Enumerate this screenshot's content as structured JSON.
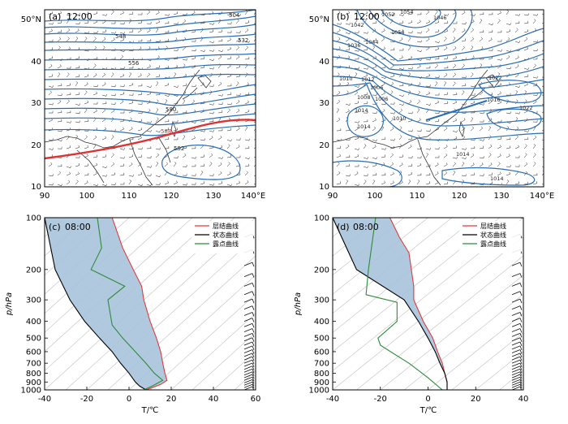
{
  "colors": {
    "contour": "#2a6db5",
    "contour_dark": "#1f4f8f",
    "ridge": "#e03030",
    "stratification": "#e03a3a",
    "state": "#000000",
    "dewpoint": "#2e8b3a",
    "cape_fill": "#a8c3dc",
    "isotherm": "#c8c8c8",
    "wind": "#222222"
  },
  "chart_data": [
    {
      "type": "map-contour",
      "panel": "(a)",
      "time_label": "12:00",
      "lat_range": [
        10,
        50
      ],
      "lon_range": [
        90,
        140
      ],
      "y_tick_labels": [
        "10",
        "20",
        "30",
        "40",
        "50°N"
      ],
      "x_tick_labels": [
        "90",
        "100",
        "110",
        "120",
        "130",
        "140°E"
      ],
      "contour_labels": [
        "504",
        "532",
        "548",
        "556",
        "580",
        "588",
        "592"
      ],
      "highlight_contour": "588"
    },
    {
      "type": "map-contour",
      "panel": "(b)",
      "time_label": "12:00",
      "lat_range": [
        10,
        50
      ],
      "lon_range": [
        90,
        140
      ],
      "y_tick_labels": [
        "10",
        "20",
        "30",
        "40",
        "50°N"
      ],
      "x_tick_labels": [
        "90",
        "100",
        "110",
        "120",
        "130",
        "140°E"
      ],
      "contour_labels": [
        "1052",
        "1054",
        "1042",
        "1046",
        "1054",
        "1036",
        "1044",
        "1010",
        "1006",
        "1008",
        "1006",
        "1012",
        "1014",
        "1010",
        "1014",
        "1016",
        "1014",
        "1022",
        "1022",
        "1014"
      ]
    },
    {
      "type": "line",
      "panel": "(c)",
      "time_label": "08:00",
      "xlabel": "T/℃",
      "ylabel": "p/hPa",
      "xlim": [
        -40,
        60
      ],
      "ylim": [
        1000,
        100
      ],
      "x_ticks": [
        "-40",
        "-20",
        "0",
        "20",
        "40",
        "60"
      ],
      "y_ticks": [
        "100",
        "200",
        "300",
        "400",
        "500",
        "600",
        "700",
        "800",
        "900",
        "1000"
      ],
      "legend": [
        "层结曲线",
        "状态曲线",
        "露点曲线"
      ],
      "series": [
        {
          "name": "层结曲线",
          "color": "#e03a3a",
          "points": [
            [
              -8,
              100
            ],
            [
              -3,
              150
            ],
            [
              2,
              200
            ],
            [
              6,
              250
            ],
            [
              7,
              300
            ],
            [
              10,
              400
            ],
            [
              13,
              500
            ],
            [
              15,
              600
            ],
            [
              16,
              700
            ],
            [
              17,
              800
            ],
            [
              18,
              880
            ],
            [
              15,
              930
            ],
            [
              11,
              970
            ],
            [
              8,
              1000
            ]
          ]
        },
        {
          "name": "状态曲线",
          "color": "#000000",
          "points": [
            [
              -40,
              100
            ],
            [
              -35,
              200
            ],
            [
              -28,
              300
            ],
            [
              -21,
              400
            ],
            [
              -14,
              500
            ],
            [
              -8,
              600
            ],
            [
              -4,
              700
            ],
            [
              0,
              800
            ],
            [
              3,
              900
            ],
            [
              5,
              950
            ],
            [
              8,
              1000
            ]
          ]
        },
        {
          "name": "露点曲线",
          "color": "#2e8b3a",
          "points": [
            [
              -15,
              100
            ],
            [
              -13,
              150
            ],
            [
              -18,
              200
            ],
            [
              -2,
              250
            ],
            [
              -10,
              300
            ],
            [
              -8,
              420
            ],
            [
              -3,
              500
            ],
            [
              3,
              600
            ],
            [
              8,
              700
            ],
            [
              12,
              800
            ],
            [
              16,
              880
            ],
            [
              11,
              950
            ],
            [
              7,
              1000
            ]
          ]
        }
      ]
    },
    {
      "type": "line",
      "panel": "(d)",
      "time_label": "08:00",
      "xlabel": "T/℃",
      "ylabel": "p/hPa",
      "xlim": [
        -40,
        40
      ],
      "ylim": [
        1000,
        100
      ],
      "x_ticks": [
        "-40",
        "-20",
        "0",
        "20",
        "40"
      ],
      "y_ticks": [
        "100",
        "200",
        "300",
        "400",
        "500",
        "600",
        "700",
        "800",
        "900",
        "1000"
      ],
      "legend": [
        "层结曲线",
        "状态曲线",
        "露点曲线"
      ],
      "series": [
        {
          "name": "层结曲线",
          "color": "#e03a3a",
          "points": [
            [
              -16,
              100
            ],
            [
              -12,
              130
            ],
            [
              -8,
              160
            ],
            [
              -7,
              200
            ],
            [
              -6,
              250
            ],
            [
              -6,
              300
            ],
            [
              -2,
              400
            ],
            [
              2,
              500
            ],
            [
              4,
              600
            ],
            [
              6,
              700
            ],
            [
              7,
              800
            ],
            [
              8,
              900
            ],
            [
              8,
              1000
            ]
          ]
        },
        {
          "name": "状态曲线",
          "color": "#000000",
          "points": [
            [
              -40,
              100
            ],
            [
              -30,
              200
            ],
            [
              -10,
              300
            ],
            [
              -4,
              400
            ],
            [
              0,
              500
            ],
            [
              3,
              600
            ],
            [
              5,
              700
            ],
            [
              7,
              800
            ],
            [
              8,
              900
            ],
            [
              8,
              1000
            ]
          ]
        },
        {
          "name": "露点曲线",
          "color": "#2e8b3a",
          "points": [
            [
              -22,
              100
            ],
            [
              -25,
              200
            ],
            [
              -26,
              280
            ],
            [
              -13,
              310
            ],
            [
              -13,
              400
            ],
            [
              -21,
              500
            ],
            [
              -20,
              550
            ],
            [
              -8,
              700
            ],
            [
              0,
              850
            ],
            [
              6,
              1000
            ]
          ]
        }
      ]
    }
  ]
}
